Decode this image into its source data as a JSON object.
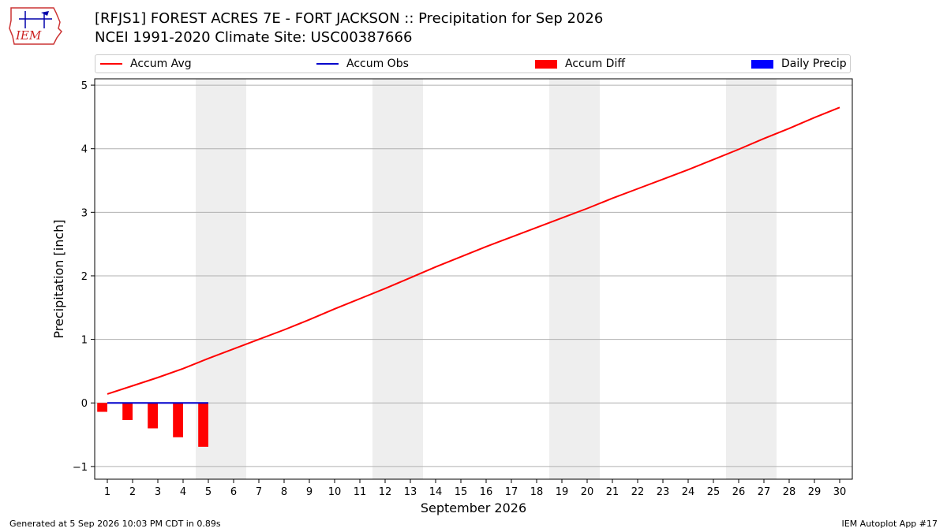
{
  "header": {
    "logo_text": "IEM",
    "title_line1": "[RFJS1] FOREST ACRES 7E - FORT JACKSON :: Precipitation for Sep 2026",
    "title_line2": "NCEI 1991-2020 Climate Site: USC00387666"
  },
  "footer": {
    "generated": "Generated at 5 Sep 2026 10:03 PM CDT in 0.89s",
    "app": "IEM Autoplot App #17"
  },
  "colors": {
    "accum_avg": "#ff0000",
    "accum_obs": "#0000cc",
    "accum_diff": "#ff0000",
    "daily_precip": "#0000ff",
    "weekend_shade": "#eeeeee",
    "grid": "#b0b0b0"
  },
  "chart_data": {
    "type": "bar",
    "xlabel": "September 2026",
    "ylabel": "Precipitation [inch]",
    "xlim": [
      0.5,
      30.5
    ],
    "ylim": [
      -1.2,
      5.1
    ],
    "yticks": [
      -1,
      0,
      1,
      2,
      3,
      4,
      5
    ],
    "x": [
      1,
      2,
      3,
      4,
      5,
      6,
      7,
      8,
      9,
      10,
      11,
      12,
      13,
      14,
      15,
      16,
      17,
      18,
      19,
      20,
      21,
      22,
      23,
      24,
      25,
      26,
      27,
      28,
      29,
      30
    ],
    "weekend_days": [
      [
        5,
        6
      ],
      [
        12,
        13
      ],
      [
        19,
        20
      ],
      [
        26,
        27
      ]
    ],
    "legend_position": "top",
    "grid": true,
    "series": [
      {
        "name": "Accum Avg",
        "kind": "line",
        "x": [
          1,
          2,
          3,
          4,
          5,
          6,
          7,
          8,
          9,
          10,
          11,
          12,
          13,
          14,
          15,
          16,
          17,
          18,
          19,
          20,
          21,
          22,
          23,
          24,
          25,
          26,
          27,
          28,
          29,
          30
        ],
        "values": [
          0.14,
          0.27,
          0.4,
          0.54,
          0.7,
          0.85,
          1.0,
          1.15,
          1.31,
          1.48,
          1.64,
          1.8,
          1.97,
          2.14,
          2.3,
          2.46,
          2.61,
          2.76,
          2.91,
          3.06,
          3.22,
          3.37,
          3.52,
          3.67,
          3.83,
          3.99,
          4.16,
          4.32,
          4.49,
          4.65
        ]
      },
      {
        "name": "Accum Obs",
        "kind": "line",
        "x": [
          1,
          2,
          3,
          4,
          5
        ],
        "values": [
          0,
          0,
          0,
          0,
          0
        ]
      },
      {
        "name": "Accum Diff",
        "kind": "bar",
        "x": [
          1,
          2,
          3,
          4,
          5
        ],
        "values": [
          -0.14,
          -0.27,
          -0.4,
          -0.54,
          -0.69
        ]
      },
      {
        "name": "Daily Precip",
        "kind": "bar",
        "x": [
          1,
          2,
          3,
          4,
          5
        ],
        "values": [
          0,
          0,
          0,
          0,
          0
        ]
      }
    ]
  }
}
